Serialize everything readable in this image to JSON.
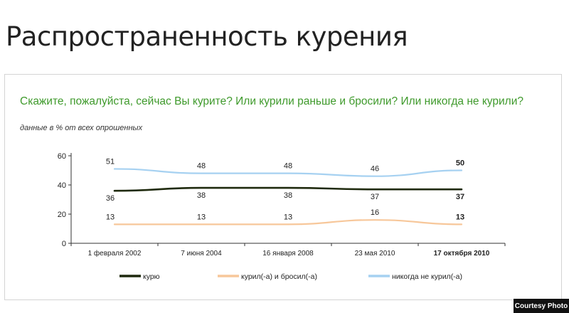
{
  "header": {
    "title": "Распространенность курения"
  },
  "credit": "Courtesy Photo",
  "chart_data": {
    "type": "line",
    "title": "Скажите, пожалуйста, сейчас Вы курите? Или курили раньше и бросили? Или никогда не курили?",
    "subtitle": "данные в % от всех опрошенных",
    "categories": [
      "1 февраля 2002",
      "7 июня 2004",
      "16 января 2008",
      "23 мая 2010",
      "17 октября 2010"
    ],
    "ylim": [
      0,
      60
    ],
    "yticks": [
      0,
      20,
      40,
      60
    ],
    "grid": false,
    "legend_position": "bottom",
    "highlight_last": true,
    "series": [
      {
        "name": "курю",
        "values": [
          36,
          38,
          38,
          37,
          37
        ],
        "color": "#1f2a0e"
      },
      {
        "name": "курил(-а) и бросил(-а)",
        "values": [
          13,
          13,
          13,
          16,
          13
        ],
        "color": "#f7c79a"
      },
      {
        "name": "никогда не курил(-а)",
        "values": [
          51,
          48,
          48,
          46,
          50
        ],
        "color": "#a6d1f1"
      }
    ]
  }
}
